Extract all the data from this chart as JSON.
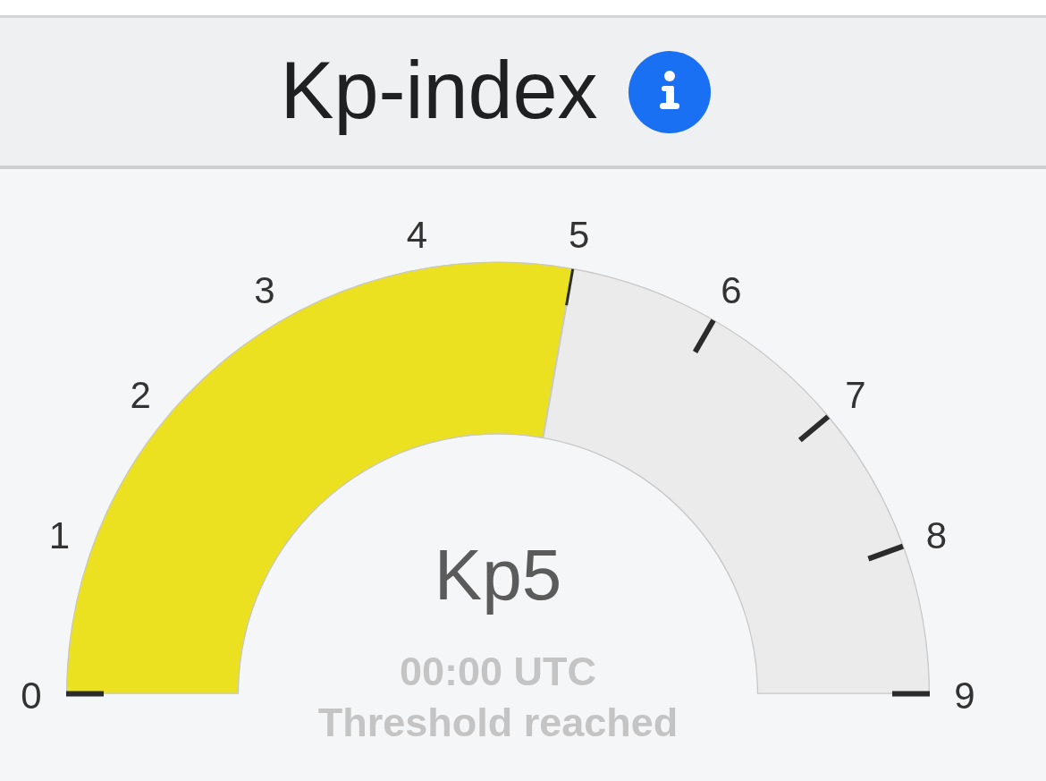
{
  "chart_data": {
    "type": "donut",
    "title": "Kp-index",
    "categories": [
      null,
      null
    ],
    "values": [
      5,
      4
    ],
    "colors": [
      "#ebe120",
      "#ebebeb"
    ],
    "value_labels": [
      "Kp5",
      null
    ],
    "annotations": [
      {
        "text": "0"
      },
      {
        "text": "1"
      },
      {
        "text": "2"
      },
      {
        "text": "3"
      },
      {
        "text": "4"
      },
      {
        "text": "5"
      },
      {
        "text": "6"
      },
      {
        "text": "7"
      },
      {
        "text": "8"
      },
      {
        "text": "9"
      },
      "00:00 UTC",
      "Threshold reached"
    ]
  }
}
